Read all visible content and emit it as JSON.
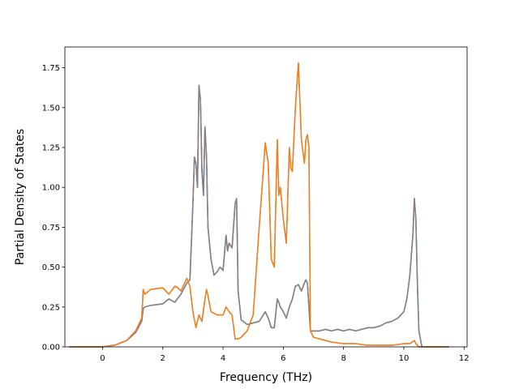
{
  "chart_data": {
    "type": "line",
    "title": "",
    "xlabel": "Frequency (THz)",
    "ylabel": "Partial Density of States",
    "xlim": [
      -1.25,
      12.1
    ],
    "ylim": [
      0,
      1.88
    ],
    "xticks": [
      0,
      2,
      4,
      6,
      8,
      10,
      12
    ],
    "xtick_labels": [
      "0",
      "2",
      "4",
      "6",
      "8",
      "10",
      "12"
    ],
    "yticks": [
      0,
      0.25,
      0.5,
      0.75,
      1.0,
      1.25,
      1.5,
      1.75
    ],
    "ytick_labels": [
      "0.00",
      "0.25",
      "0.50",
      "0.75",
      "1.00",
      "1.25",
      "1.50",
      "1.75"
    ],
    "grid": false,
    "legend": "none",
    "series": [
      {
        "color": "#1f77b4",
        "x": [
          -1.1,
          0.0,
          0.4,
          0.8,
          1.1,
          1.3,
          1.35,
          1.4,
          1.6,
          2.0,
          2.2,
          2.4,
          2.6,
          2.8,
          2.9,
          3.0,
          3.05,
          3.1,
          3.15,
          3.2,
          3.25,
          3.3,
          3.35,
          3.4,
          3.45,
          3.5,
          3.6,
          3.7,
          3.8,
          3.9,
          4.0,
          4.1,
          4.15,
          4.2,
          4.3,
          4.4,
          4.45,
          4.5,
          4.6,
          4.8,
          5.0,
          5.2,
          5.4,
          5.5,
          5.6,
          5.7,
          5.8,
          5.85,
          5.9,
          6.0,
          6.1,
          6.2,
          6.3,
          6.4,
          6.5,
          6.6,
          6.7,
          6.75,
          6.8,
          6.9,
          7.0,
          7.2,
          7.4,
          7.6,
          7.8,
          8.0,
          8.2,
          8.4,
          8.6,
          8.8,
          9.0,
          9.2,
          9.4,
          9.6,
          9.8,
          10.0,
          10.1,
          10.2,
          10.3,
          10.35,
          10.4,
          10.45,
          10.5,
          10.6,
          11.5
        ],
        "values": [
          0.0,
          0.0,
          0.01,
          0.04,
          0.09,
          0.16,
          0.24,
          0.25,
          0.26,
          0.27,
          0.3,
          0.28,
          0.33,
          0.4,
          0.42,
          0.9,
          1.19,
          1.15,
          1.0,
          1.64,
          1.55,
          1.1,
          0.95,
          1.38,
          1.2,
          0.75,
          0.55,
          0.45,
          0.47,
          0.5,
          0.48,
          0.7,
          0.6,
          0.65,
          0.62,
          0.9,
          0.93,
          0.35,
          0.17,
          0.14,
          0.15,
          0.16,
          0.22,
          0.18,
          0.12,
          0.12,
          0.3,
          0.28,
          0.25,
          0.22,
          0.18,
          0.25,
          0.3,
          0.38,
          0.39,
          0.35,
          0.4,
          0.42,
          0.4,
          0.1,
          0.1,
          0.1,
          0.11,
          0.1,
          0.11,
          0.1,
          0.11,
          0.1,
          0.11,
          0.12,
          0.12,
          0.13,
          0.15,
          0.16,
          0.18,
          0.22,
          0.3,
          0.45,
          0.7,
          0.93,
          0.8,
          0.4,
          0.1,
          0.0,
          0.0
        ]
      },
      {
        "color": "#ff7f0e",
        "x": [
          -1.1,
          0.0,
          0.4,
          0.8,
          1.1,
          1.3,
          1.35,
          1.4,
          1.6,
          2.0,
          2.2,
          2.4,
          2.5,
          2.6,
          2.8,
          2.9,
          3.0,
          3.1,
          3.2,
          3.3,
          3.4,
          3.45,
          3.5,
          3.6,
          3.8,
          4.0,
          4.1,
          4.2,
          4.3,
          4.4,
          4.5,
          4.6,
          4.8,
          5.0,
          5.2,
          5.4,
          5.5,
          5.6,
          5.7,
          5.8,
          5.85,
          5.9,
          6.0,
          6.1,
          6.2,
          6.25,
          6.3,
          6.4,
          6.5,
          6.6,
          6.7,
          6.75,
          6.8,
          6.85,
          6.9,
          7.0,
          7.2,
          7.6,
          8.0,
          8.4,
          8.8,
          9.2,
          9.6,
          10.0,
          10.2,
          10.35,
          10.4,
          10.5,
          11.5
        ],
        "values": [
          0.0,
          0.0,
          0.01,
          0.04,
          0.1,
          0.18,
          0.36,
          0.33,
          0.36,
          0.37,
          0.33,
          0.38,
          0.37,
          0.35,
          0.43,
          0.38,
          0.22,
          0.12,
          0.2,
          0.16,
          0.3,
          0.36,
          0.32,
          0.22,
          0.2,
          0.2,
          0.25,
          0.22,
          0.2,
          0.05,
          0.05,
          0.06,
          0.1,
          0.2,
          0.75,
          1.28,
          1.15,
          0.55,
          0.5,
          1.3,
          0.95,
          1.0,
          0.8,
          0.65,
          1.25,
          1.12,
          1.1,
          1.5,
          1.78,
          1.3,
          1.15,
          1.3,
          1.33,
          1.25,
          0.1,
          0.06,
          0.05,
          0.03,
          0.02,
          0.02,
          0.01,
          0.01,
          0.01,
          0.02,
          0.02,
          0.04,
          0.02,
          0.0,
          0.0
        ]
      },
      {
        "color": "#8c7e7e",
        "x": [
          -1.1,
          0.0,
          0.4,
          0.8,
          1.1,
          1.3,
          1.35,
          1.4,
          1.6,
          2.0,
          2.2,
          2.4,
          2.6,
          2.8,
          2.9,
          3.0,
          3.05,
          3.1,
          3.15,
          3.2,
          3.25,
          3.3,
          3.35,
          3.4,
          3.45,
          3.5,
          3.6,
          3.7,
          3.8,
          3.9,
          4.0,
          4.1,
          4.15,
          4.2,
          4.3,
          4.4,
          4.45,
          4.5,
          4.6,
          4.8,
          5.0,
          5.2,
          5.4,
          5.5,
          5.6,
          5.7,
          5.8,
          5.85,
          5.9,
          6.0,
          6.1,
          6.2,
          6.3,
          6.4,
          6.5,
          6.6,
          6.7,
          6.75,
          6.8,
          6.9,
          7.0,
          7.2,
          7.4,
          7.6,
          7.8,
          8.0,
          8.2,
          8.4,
          8.6,
          8.8,
          9.0,
          9.2,
          9.4,
          9.6,
          9.8,
          10.0,
          10.1,
          10.2,
          10.3,
          10.35,
          10.4,
          10.45,
          10.5,
          10.6,
          11.5
        ],
        "values": [
          0.0,
          0.0,
          0.01,
          0.04,
          0.09,
          0.16,
          0.24,
          0.25,
          0.26,
          0.27,
          0.3,
          0.28,
          0.33,
          0.4,
          0.42,
          0.9,
          1.19,
          1.15,
          1.0,
          1.64,
          1.55,
          1.1,
          0.95,
          1.38,
          1.2,
          0.75,
          0.55,
          0.45,
          0.47,
          0.5,
          0.48,
          0.7,
          0.6,
          0.65,
          0.62,
          0.9,
          0.93,
          0.35,
          0.17,
          0.14,
          0.15,
          0.16,
          0.22,
          0.18,
          0.12,
          0.12,
          0.3,
          0.28,
          0.25,
          0.22,
          0.18,
          0.25,
          0.3,
          0.38,
          0.39,
          0.35,
          0.4,
          0.42,
          0.4,
          0.1,
          0.1,
          0.1,
          0.11,
          0.1,
          0.11,
          0.1,
          0.11,
          0.1,
          0.11,
          0.12,
          0.12,
          0.13,
          0.15,
          0.16,
          0.18,
          0.22,
          0.3,
          0.45,
          0.7,
          0.93,
          0.8,
          0.4,
          0.1,
          0.0,
          0.0
        ]
      },
      {
        "color": "#e8822a",
        "x": [
          -1.1,
          0.0,
          0.4,
          0.8,
          1.1,
          1.3,
          1.35,
          1.4,
          1.6,
          2.0,
          2.2,
          2.4,
          2.5,
          2.6,
          2.8,
          2.9,
          3.0,
          3.1,
          3.2,
          3.3,
          3.4,
          3.45,
          3.5,
          3.6,
          3.8,
          4.0,
          4.1,
          4.2,
          4.3,
          4.4,
          4.5,
          4.6,
          4.8,
          5.0,
          5.2,
          5.4,
          5.5,
          5.6,
          5.7,
          5.8,
          5.85,
          5.9,
          6.0,
          6.1,
          6.2,
          6.25,
          6.3,
          6.4,
          6.5,
          6.6,
          6.7,
          6.75,
          6.8,
          6.85,
          6.9,
          7.0,
          7.2,
          7.6,
          8.0,
          8.4,
          8.8,
          9.2,
          9.6,
          10.0,
          10.2,
          10.35,
          10.4,
          10.5,
          11.5
        ],
        "values": [
          0.0,
          0.0,
          0.01,
          0.04,
          0.1,
          0.18,
          0.36,
          0.33,
          0.36,
          0.37,
          0.33,
          0.38,
          0.37,
          0.35,
          0.43,
          0.38,
          0.22,
          0.12,
          0.2,
          0.16,
          0.3,
          0.36,
          0.32,
          0.22,
          0.2,
          0.2,
          0.25,
          0.22,
          0.2,
          0.05,
          0.05,
          0.06,
          0.1,
          0.2,
          0.75,
          1.28,
          1.15,
          0.55,
          0.5,
          1.3,
          0.95,
          1.0,
          0.8,
          0.65,
          1.25,
          1.12,
          1.1,
          1.5,
          1.78,
          1.3,
          1.15,
          1.3,
          1.33,
          1.25,
          0.1,
          0.06,
          0.05,
          0.03,
          0.02,
          0.02,
          0.01,
          0.01,
          0.01,
          0.02,
          0.02,
          0.04,
          0.02,
          0.0,
          0.0
        ]
      }
    ]
  }
}
